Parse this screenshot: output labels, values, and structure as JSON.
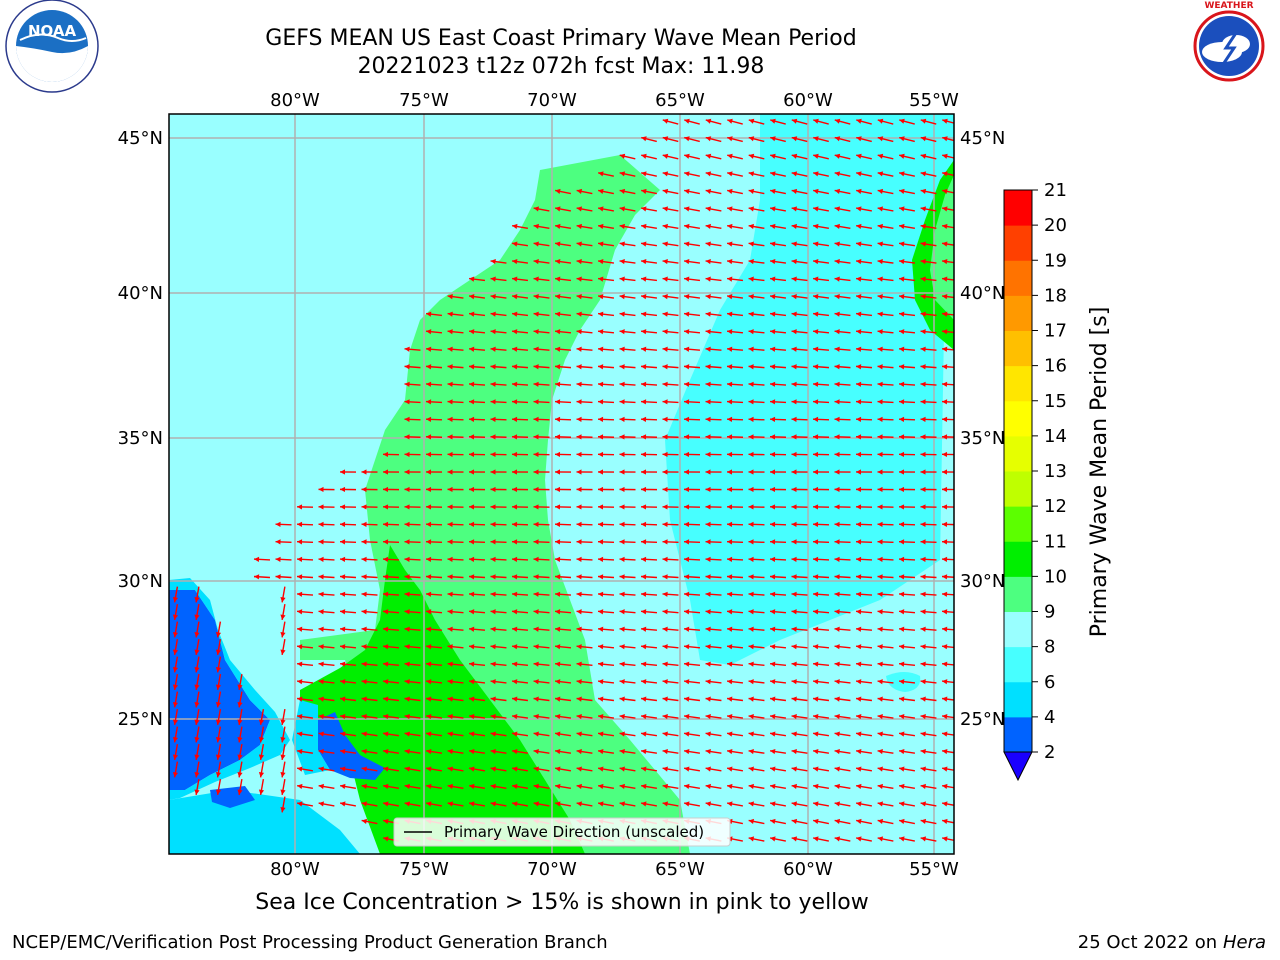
{
  "header": {
    "title_line1": "GEFS MEAN US East Coast Primary Wave Mean Period",
    "title_line2": "20221023 t12z 072h fcst   Max: 11.98"
  },
  "logos": {
    "left": {
      "text": "NOAA",
      "ring_text": "NATIONAL OCEANIC AND ATMOSPHERIC ADMINISTRATION · U.S. DEPARTMENT OF COMMERCE",
      "icon": "noaa-logo"
    },
    "right": {
      "ring_text": "NATIONAL WEATHER SERVICE",
      "icon": "nws-logo"
    }
  },
  "map": {
    "lon_labels_top": [
      "80°W",
      "75°W",
      "70°W",
      "65°W",
      "60°W",
      "55°W"
    ],
    "lon_labels_bottom": [
      "80°W",
      "75°W",
      "70°W",
      "65°W",
      "60°W",
      "55°W"
    ],
    "lat_labels_left": [
      "45°N",
      "40°N",
      "35°N",
      "30°N",
      "25°N"
    ],
    "lat_labels_right": [
      "45°N",
      "40°N",
      "35°N",
      "30°N",
      "25°N"
    ],
    "legend_label": "Primary Wave Direction (unscaled)",
    "land_color": "#efedda",
    "arrow_color": "#ff0000",
    "wave_direction": "westward"
  },
  "colorbar": {
    "label": "Primary Wave Mean Period [s]",
    "ticks": [
      "2",
      "4",
      "6",
      "8",
      "9",
      "10",
      "11",
      "12",
      "13",
      "14",
      "15",
      "16",
      "17",
      "18",
      "19",
      "20",
      "21"
    ],
    "colors": [
      "#0063ff",
      "#00e0ff",
      "#47ffff",
      "#99ffff",
      "#4dff80",
      "#00ef00",
      "#5cff00",
      "#bfff00",
      "#e6ff00",
      "#ffff00",
      "#ffe600",
      "#ffbf00",
      "#ff9900",
      "#ff7300",
      "#ff4000",
      "#ff0000"
    ],
    "extend_color": "#1a00ff"
  },
  "footer": {
    "subtitle": "Sea Ice Concentration > 15% is shown in pink to yellow",
    "left": "NCEP/EMC/Verification Post Processing Product Generation Branch",
    "date": "25 Oct 2022 on ",
    "machine": "Hera"
  }
}
